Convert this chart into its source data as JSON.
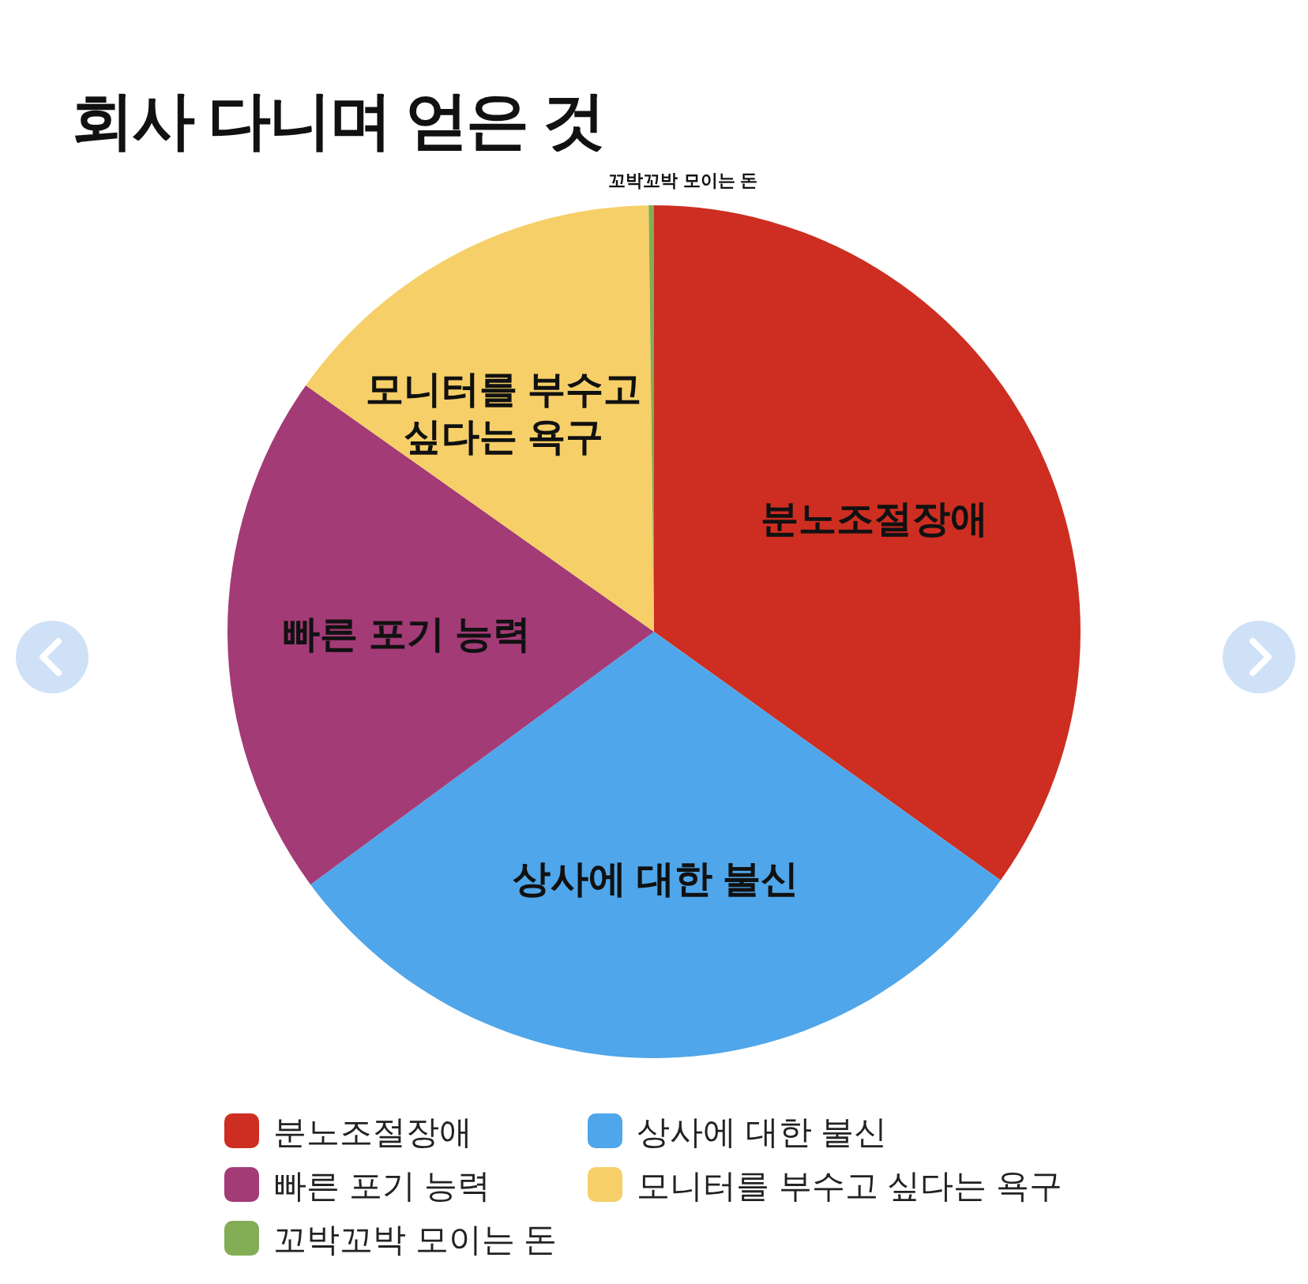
{
  "chart_data": {
    "type": "pie",
    "title": "회사 다니며 얻은 것",
    "categories": [
      "분노조절장애",
      "상사에 대한 불신",
      "빠른 포기 능력",
      "모니터를 부수고 싶다는 욕구",
      "꼬박꼬박 모이는 돈"
    ],
    "values": [
      34.9,
      30,
      19.9,
      15,
      0.2
    ],
    "colors": [
      "#cd2e21",
      "#4fa6ea",
      "#a33b77",
      "#f6cf68",
      "#82ad55"
    ],
    "legend": "bottom"
  }
}
